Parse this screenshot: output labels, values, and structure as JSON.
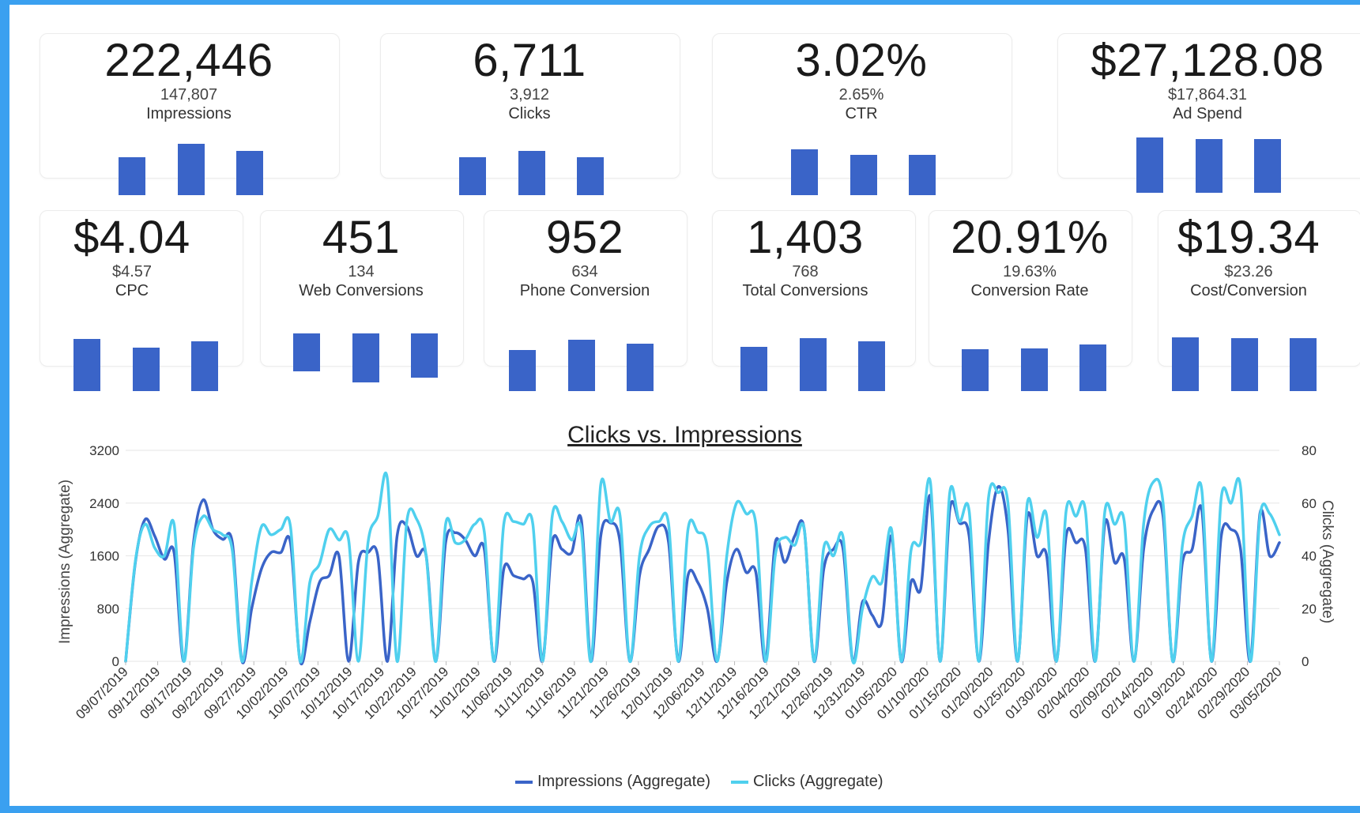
{
  "kpis_top": [
    {
      "value": "222,446",
      "previous": "147,807",
      "label": "Impressions"
    },
    {
      "value": "6,711",
      "previous": "3,912",
      "label": "Clicks"
    },
    {
      "value": "3.02%",
      "previous": "2.65%",
      "label": "CTR"
    },
    {
      "value": "$27,128.08",
      "previous": "$17,864.31",
      "label": "Ad Spend"
    }
  ],
  "kpis_bottom": [
    {
      "value": "$4.04",
      "previous": "$4.57",
      "label": "CPC"
    },
    {
      "value": "451",
      "previous": "134",
      "label": "Web Conversions"
    },
    {
      "value": "952",
      "previous": "634",
      "label": "Phone Conversion"
    },
    {
      "value": "1,403",
      "previous": "768",
      "label": "Total Conversions"
    },
    {
      "value": "20.91%",
      "previous": "19.63%",
      "label": "Conversion Rate"
    },
    {
      "value": "$19.34",
      "previous": "$23.26",
      "label": "Cost/Conversion"
    }
  ],
  "colors": {
    "bar": "#3a64c8",
    "impressions": "#3a64c8",
    "clicks": "#4fd0ee",
    "background": "#3aa0f0"
  },
  "chart": {
    "title": "Clicks vs. Impressions",
    "ylabel_left": "Impressions (Aggregate)",
    "ylabel_right": "Clicks (Aggregate)",
    "legend": [
      "Impressions (Aggregate)",
      "Clicks (Aggregate)"
    ]
  },
  "chart_data": {
    "type": "line",
    "title": "Clicks vs. Impressions",
    "xlabel": "",
    "ylabel": "Impressions (Aggregate)",
    "y2label": "Clicks (Aggregate)",
    "ylim": [
      0,
      3200
    ],
    "y2lim": [
      0,
      80
    ],
    "yticks": [
      "0",
      "800",
      "1600",
      "2400",
      "3200"
    ],
    "y2ticks": [
      "0",
      "20",
      "40",
      "60",
      "80"
    ],
    "grid": true,
    "legend_position": "bottom",
    "x_tick_labels": [
      "09/07/2019",
      "09/12/2019",
      "09/17/2019",
      "09/22/2019",
      "09/27/2019",
      "10/02/2019",
      "10/07/2019",
      "10/12/2019",
      "10/17/2019",
      "10/22/2019",
      "10/27/2019",
      "11/01/2019",
      "11/06/2019",
      "11/11/2019",
      "11/16/2019",
      "11/21/2019",
      "11/26/2019",
      "12/01/2019",
      "12/06/2019",
      "12/11/2019",
      "12/16/2019",
      "12/21/2019",
      "12/26/2019",
      "12/31/2019",
      "01/05/2020",
      "01/10/2020",
      "01/15/2020",
      "01/20/2020",
      "01/25/2020",
      "01/30/2020",
      "02/04/2020",
      "02/09/2020",
      "02/14/2020",
      "02/19/2020",
      "02/24/2020",
      "02/29/2020",
      "03/05/2020"
    ],
    "series": [
      {
        "name": "Impressions (Aggregate)",
        "axis": "left",
        "values": [
          0,
          1500,
          2150,
          1900,
          1550,
          1650,
          0,
          1800,
          2450,
          2000,
          1850,
          1800,
          0,
          800,
          1400,
          1650,
          1650,
          1800,
          0,
          600,
          1200,
          1300,
          1600,
          0,
          1500,
          1650,
          1600,
          0,
          1900,
          2050,
          1600,
          1600,
          0,
          1800,
          1950,
          1850,
          1600,
          1700,
          0,
          1400,
          1300,
          1250,
          1200,
          0,
          1800,
          1700,
          1650,
          2150,
          0,
          1900,
          2100,
          1800,
          0,
          1300,
          1700,
          2050,
          1800,
          0,
          1300,
          1200,
          800,
          0,
          1200,
          1700,
          1350,
          1350,
          0,
          1800,
          1500,
          1900,
          2000,
          0,
          1400,
          1700,
          1700,
          0,
          900,
          700,
          600,
          1900,
          0,
          1200,
          1100,
          2500,
          0,
          2300,
          2100,
          1900,
          0,
          1800,
          2650,
          2000,
          0,
          2200,
          1600,
          1600,
          0,
          1900,
          1800,
          1700,
          0,
          2100,
          1500,
          1550,
          0,
          1700,
          2300,
          2200,
          0,
          1500,
          1700,
          2300,
          0,
          1900,
          2000,
          1700,
          0,
          2250,
          1600,
          1800
        ]
      },
      {
        "name": "Clicks (Aggregate)",
        "axis": "right",
        "values": [
          0,
          38,
          52,
          43,
          40,
          52,
          0,
          43,
          55,
          50,
          48,
          42,
          0,
          30,
          51,
          48,
          50,
          51,
          0,
          30,
          37,
          50,
          46,
          46,
          0,
          45,
          55,
          69,
          0,
          53,
          54,
          40,
          0,
          52,
          45,
          46,
          52,
          49,
          0,
          52,
          53,
          52,
          52,
          0,
          55,
          53,
          46,
          50,
          0,
          67,
          53,
          55,
          0,
          40,
          51,
          53,
          52,
          0,
          50,
          49,
          43,
          0,
          40,
          60,
          56,
          52,
          0,
          40,
          47,
          44,
          50,
          0,
          43,
          40,
          47,
          0,
          20,
          32,
          30,
          50,
          0,
          42,
          45,
          68,
          0,
          64,
          53,
          57,
          0,
          62,
          64,
          60,
          0,
          60,
          47,
          55,
          0,
          57,
          55,
          57,
          0,
          57,
          52,
          53,
          0,
          52,
          68,
          60,
          0,
          44,
          55,
          65,
          0,
          62,
          60,
          66,
          0,
          55,
          56,
          48
        ]
      }
    ]
  }
}
